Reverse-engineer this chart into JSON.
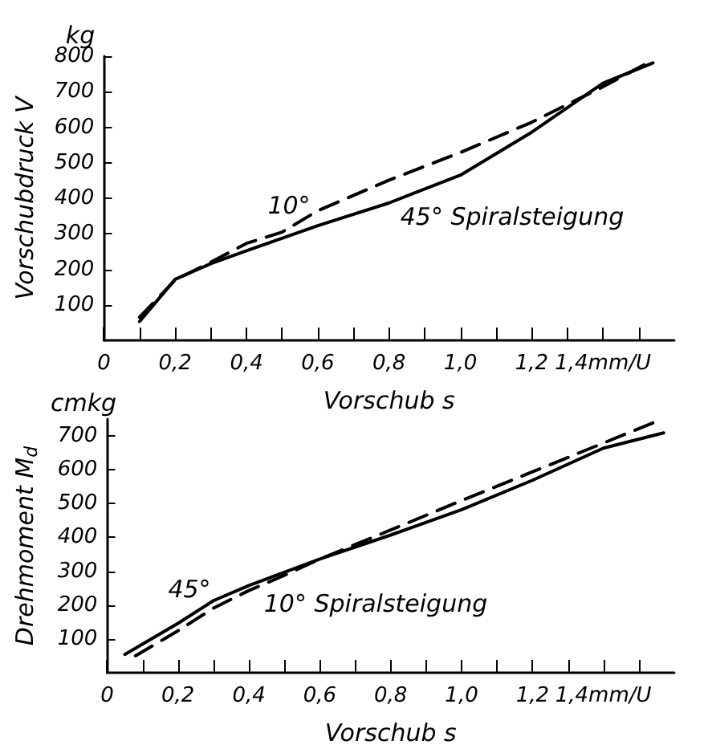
{
  "chart_data": [
    {
      "type": "line",
      "xlabel": "Vorschub s",
      "ylabel": "Vorschubdruck V",
      "xlim": [
        0,
        1.6
      ],
      "ylim": [
        0,
        800
      ],
      "xticks": [
        0,
        {
          "value": 0.1,
          "label": null
        },
        {
          "value": 0.2,
          "label": "0,2"
        },
        {
          "value": 0.3,
          "label": null
        },
        {
          "value": 0.4,
          "label": "0,4"
        },
        {
          "value": 0.5,
          "label": null
        },
        {
          "value": 0.6,
          "label": "0,6"
        },
        {
          "value": 0.7,
          "label": null
        },
        {
          "value": 0.8,
          "label": "0,8"
        },
        {
          "value": 0.9,
          "label": null
        },
        {
          "value": 1.0,
          "label": "1,0"
        },
        {
          "value": 1.1,
          "label": null
        },
        {
          "value": 1.2,
          "label": "1,2"
        },
        {
          "value": 1.3,
          "label": null
        },
        {
          "value": 1.4,
          "label": "1,4mm/U"
        },
        {
          "value": 1.5,
          "label": null
        }
      ],
      "yticks": [
        100,
        200,
        300,
        400,
        500,
        600,
        700,
        800
      ],
      "grid": false,
      "marker": "none",
      "annotations": [
        "kg",
        "10°",
        "45° Spiralsteigung"
      ],
      "series": [
        {
          "color": "#000000",
          "line_style": "dashed",
          "x": [
            0.1,
            0.2,
            0.3,
            0.4,
            0.5,
            0.6,
            0.8,
            1.0,
            1.2,
            1.4,
            1.54
          ],
          "values": [
            65,
            170,
            220,
            273,
            305,
            365,
            451,
            529,
            614,
            714,
            789
          ]
        },
        {
          "color": "#000000",
          "line_style": "solid",
          "x": [
            0.1,
            0.2,
            0.3,
            0.4,
            0.6,
            0.8,
            1.0,
            1.2,
            1.4,
            1.54
          ],
          "values": [
            53,
            172,
            216,
            252,
            323,
            387,
            465,
            586,
            724,
            781
          ]
        }
      ]
    },
    {
      "type": "line",
      "xlabel": "Vorschub s",
      "ylabel": "Drehmoment M$_{d}$",
      "xlim": [
        0,
        1.6
      ],
      "ylim": [
        0,
        750
      ],
      "xticks": [
        0,
        {
          "value": 0.1,
          "label": null
        },
        {
          "value": 0.2,
          "label": "0,2"
        },
        {
          "value": 0.3,
          "label": null
        },
        {
          "value": 0.4,
          "label": "0,4"
        },
        {
          "value": 0.5,
          "label": null
        },
        {
          "value": 0.6,
          "label": "0,6"
        },
        {
          "value": 0.7,
          "label": null
        },
        {
          "value": 0.8,
          "label": "0,8"
        },
        {
          "value": 0.9,
          "label": null
        },
        {
          "value": 1.0,
          "label": "1,0"
        },
        {
          "value": 1.1,
          "label": null
        },
        {
          "value": 1.2,
          "label": "1,2"
        },
        {
          "value": 1.3,
          "label": null
        },
        {
          "value": 1.4,
          "label": "1,4mm/U"
        },
        {
          "value": 1.5,
          "label": null
        }
      ],
      "yticks": [
        100,
        200,
        300,
        400,
        500,
        600,
        700
      ],
      "grid": false,
      "marker": "none",
      "annotations": [
        "cmkg",
        "45°",
        "10° Spiralsteigung"
      ],
      "series": [
        {
          "color": "#000000",
          "line_style": "solid",
          "x": [
            0.05,
            0.2,
            0.3,
            0.4,
            0.6,
            0.8,
            1.0,
            1.2,
            1.4,
            1.57
          ],
          "values": [
            54,
            146,
            213,
            258,
            336,
            407,
            482,
            569,
            664,
            709
          ]
        },
        {
          "color": "#000000",
          "line_style": "dashed",
          "x": [
            0.08,
            0.2,
            0.3,
            0.4,
            0.5,
            0.6,
            0.8,
            1.0,
            1.2,
            1.4,
            1.55
          ],
          "values": [
            50,
            124,
            191,
            243,
            288,
            336,
            422,
            509,
            594,
            679,
            743
          ]
        }
      ]
    }
  ]
}
